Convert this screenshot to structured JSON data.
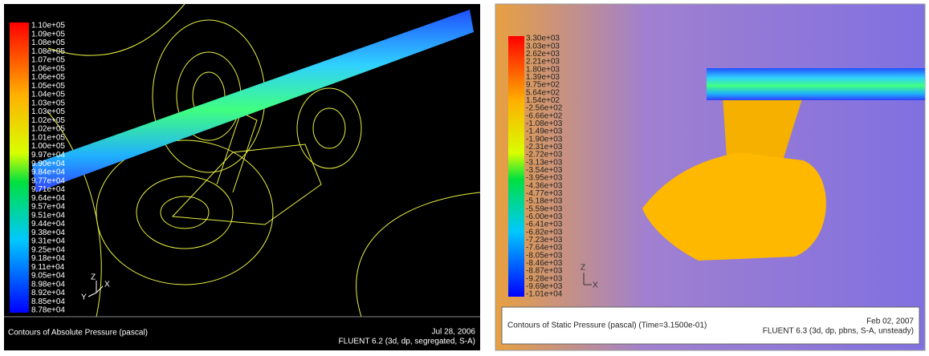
{
  "panels": [
    {
      "legend": [
        "1.10e+05",
        "1.09e+05",
        "1.08e+05",
        "1.08e+05",
        "1.07e+05",
        "1.06e+05",
        "1.06e+05",
        "1.05e+05",
        "1.04e+05",
        "1.03e+05",
        "1.03e+05",
        "1.02e+05",
        "1.02e+05",
        "1.01e+05",
        "1.00e+05",
        "9.97e+04",
        "9.90e+04",
        "9.84e+04",
        "9.77e+04",
        "9.71e+04",
        "9.64e+04",
        "9.57e+04",
        "9.51e+04",
        "9.44e+04",
        "9.38e+04",
        "9.31e+04",
        "9.25e+04",
        "9.18e+04",
        "9.11e+04",
        "9.05e+04",
        "8.98e+04",
        "8.92e+04",
        "8.85e+04",
        "8.78e+04"
      ],
      "axes": [
        "Z",
        "X",
        "Y"
      ],
      "caption": "Contours of Absolute Pressure (pascal)",
      "date": "Jul 28, 2006",
      "solver": "FLUENT 6.2 (3d, dp, segregated, S-A)"
    },
    {
      "legend": [
        "3.30e+03",
        "3.03e+03",
        "2.62e+03",
        "2.21e+03",
        "1.80e+03",
        "1.39e+03",
        "9.75e+02",
        "5.64e+02",
        "1.54e+02",
        "-2.56e+02",
        "-6.66e+02",
        "-1.08e+03",
        "-1.49e+03",
        "-1.90e+03",
        "-2.31e+03",
        "-2.72e+03",
        "-3.13e+03",
        "-3.54e+03",
        "-3.95e+03",
        "-4.36e+03",
        "-4.77e+03",
        "-5.18e+03",
        "-5.59e+03",
        "-6.00e+03",
        "-6.41e+03",
        "-6.82e+03",
        "-7.23e+03",
        "-7.64e+03",
        "-8.05e+03",
        "-8.46e+03",
        "-8.87e+03",
        "-9.28e+03",
        "-9.69e+03",
        "-1.01e+04"
      ],
      "axes": [
        "Z",
        "X"
      ],
      "caption": "Contours of Static Pressure (pascal)  (Time=3.1500e-01)",
      "date": "Feb 02, 2007",
      "solver": "FLUENT 6.3 (3d, dp, pbns, S-A, unsteady)"
    }
  ]
}
